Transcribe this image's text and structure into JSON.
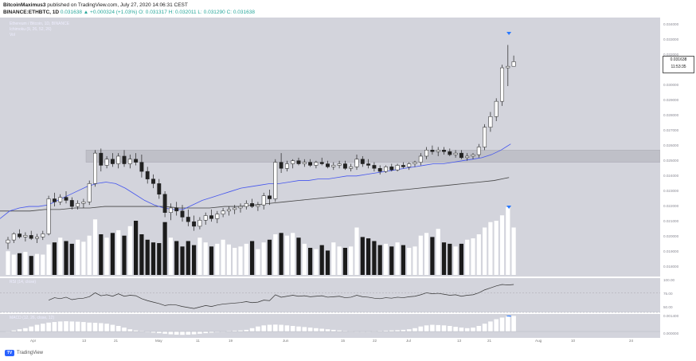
{
  "header": {
    "line1_author": "BitcoinMaximus3",
    "line1_rest": " published on TradingView.com, July 27, 2020 14:06:31 CEST",
    "line2_symbol": "BINANCE:ETHBTC, 1D",
    "line2_values": "0.031638 ▲ +0.000324 (+1.03%) O: 0.031317 H: 0.032011 L: 0.031290 C: 0.031638"
  },
  "legend": {
    "symbol": "Ethereum / Bitcoin, 1D, BINANCE",
    "ichimoku": "Ichimoku (9, 26, 52, 26)",
    "vol": "Vol",
    "rsi": "RSI (14, close)",
    "macd": "MACD (12, 26, close, 12)"
  },
  "price_axis": [
    "0.034000",
    "0.033000",
    "0.032000",
    "0.031000",
    "0.030000",
    "0.029000",
    "0.028000",
    "0.027000",
    "0.026000",
    "0.025000",
    "0.024000",
    "0.023000",
    "0.022000",
    "0.021000",
    "0.020000",
    "0.019000",
    "0.018000"
  ],
  "last_price": "0.031638",
  "countdown": "11:53:35",
  "rsi_axis": [
    "100.00",
    "75.00",
    "50.00"
  ],
  "macd_axis": [
    "0.001400",
    "0.000000"
  ],
  "x_axis": [
    "Apr",
    "13",
    "21",
    "May",
    "11",
    "19",
    "Jun",
    "15",
    "22",
    "Jul",
    "13",
    "21",
    "Aug",
    "10",
    "24"
  ],
  "footer": "TradingView",
  "colors": {
    "panel": "#d3d4dc",
    "zone": "#bfc0c8",
    "blue_line": "#4455ee",
    "black_line": "#444444",
    "marker": "#2979ff"
  },
  "chart_data": {
    "type": "candlestick",
    "title": "Ethereum / Bitcoin, 1D, BINANCE",
    "ylim": [
      0.0175,
      0.0345
    ],
    "resistance_zone": [
      0.025,
      0.0258
    ],
    "candles": [
      {
        "o": 0.0197,
        "h": 0.0201,
        "l": 0.0193,
        "c": 0.0199
      },
      {
        "o": 0.0199,
        "h": 0.0204,
        "l": 0.0197,
        "c": 0.0203
      },
      {
        "o": 0.0203,
        "h": 0.0206,
        "l": 0.02,
        "c": 0.0201
      },
      {
        "o": 0.0201,
        "h": 0.0204,
        "l": 0.0198,
        "c": 0.0202
      },
      {
        "o": 0.0202,
        "h": 0.0205,
        "l": 0.0199,
        "c": 0.02
      },
      {
        "o": 0.02,
        "h": 0.0203,
        "l": 0.0197,
        "c": 0.0201
      },
      {
        "o": 0.0201,
        "h": 0.0205,
        "l": 0.0199,
        "c": 0.0203
      },
      {
        "o": 0.0203,
        "h": 0.0228,
        "l": 0.0202,
        "c": 0.0226
      },
      {
        "o": 0.0226,
        "h": 0.023,
        "l": 0.0221,
        "c": 0.0224
      },
      {
        "o": 0.0224,
        "h": 0.0229,
        "l": 0.0222,
        "c": 0.0227
      },
      {
        "o": 0.0227,
        "h": 0.0231,
        "l": 0.0223,
        "c": 0.0225
      },
      {
        "o": 0.0225,
        "h": 0.0227,
        "l": 0.0219,
        "c": 0.0221
      },
      {
        "o": 0.0221,
        "h": 0.0225,
        "l": 0.0219,
        "c": 0.0223
      },
      {
        "o": 0.0223,
        "h": 0.0226,
        "l": 0.022,
        "c": 0.0224
      },
      {
        "o": 0.0224,
        "h": 0.0238,
        "l": 0.0222,
        "c": 0.0236
      },
      {
        "o": 0.0236,
        "h": 0.0258,
        "l": 0.0234,
        "c": 0.0256
      },
      {
        "o": 0.0256,
        "h": 0.0259,
        "l": 0.0244,
        "c": 0.0248
      },
      {
        "o": 0.0248,
        "h": 0.0254,
        "l": 0.0246,
        "c": 0.0252
      },
      {
        "o": 0.0252,
        "h": 0.0256,
        "l": 0.0247,
        "c": 0.0249
      },
      {
        "o": 0.0249,
        "h": 0.0256,
        "l": 0.0246,
        "c": 0.0254
      },
      {
        "o": 0.0254,
        "h": 0.0258,
        "l": 0.0247,
        "c": 0.0249
      },
      {
        "o": 0.0249,
        "h": 0.0255,
        "l": 0.0246,
        "c": 0.0252
      },
      {
        "o": 0.0252,
        "h": 0.0256,
        "l": 0.0248,
        "c": 0.025
      },
      {
        "o": 0.025,
        "h": 0.0255,
        "l": 0.024,
        "c": 0.0244
      },
      {
        "o": 0.0244,
        "h": 0.0247,
        "l": 0.0236,
        "c": 0.0239
      },
      {
        "o": 0.0239,
        "h": 0.0242,
        "l": 0.0233,
        "c": 0.0236
      },
      {
        "o": 0.0236,
        "h": 0.0239,
        "l": 0.0226,
        "c": 0.0229
      },
      {
        "o": 0.0229,
        "h": 0.0231,
        "l": 0.0214,
        "c": 0.0217
      },
      {
        "o": 0.0217,
        "h": 0.0223,
        "l": 0.0212,
        "c": 0.022
      },
      {
        "o": 0.022,
        "h": 0.0224,
        "l": 0.0215,
        "c": 0.0218
      },
      {
        "o": 0.0218,
        "h": 0.0222,
        "l": 0.0211,
        "c": 0.0214
      },
      {
        "o": 0.0214,
        "h": 0.0219,
        "l": 0.0208,
        "c": 0.0211
      },
      {
        "o": 0.0211,
        "h": 0.0215,
        "l": 0.0205,
        "c": 0.0208
      },
      {
        "o": 0.0208,
        "h": 0.0214,
        "l": 0.0206,
        "c": 0.0212
      },
      {
        "o": 0.0212,
        "h": 0.0217,
        "l": 0.0209,
        "c": 0.0215
      },
      {
        "o": 0.0215,
        "h": 0.0219,
        "l": 0.0211,
        "c": 0.0213
      },
      {
        "o": 0.0213,
        "h": 0.0218,
        "l": 0.021,
        "c": 0.0216
      },
      {
        "o": 0.0216,
        "h": 0.022,
        "l": 0.0214,
        "c": 0.0218
      },
      {
        "o": 0.0218,
        "h": 0.0221,
        "l": 0.0215,
        "c": 0.0219
      },
      {
        "o": 0.0219,
        "h": 0.0222,
        "l": 0.0216,
        "c": 0.022
      },
      {
        "o": 0.022,
        "h": 0.0223,
        "l": 0.0217,
        "c": 0.0221
      },
      {
        "o": 0.0221,
        "h": 0.0225,
        "l": 0.0219,
        "c": 0.0223
      },
      {
        "o": 0.0223,
        "h": 0.0226,
        "l": 0.022,
        "c": 0.0221
      },
      {
        "o": 0.0221,
        "h": 0.0224,
        "l": 0.0218,
        "c": 0.0222
      },
      {
        "o": 0.0222,
        "h": 0.023,
        "l": 0.0219,
        "c": 0.0228
      },
      {
        "o": 0.0228,
        "h": 0.0232,
        "l": 0.0222,
        "c": 0.0226
      },
      {
        "o": 0.0226,
        "h": 0.0252,
        "l": 0.0224,
        "c": 0.025
      },
      {
        "o": 0.025,
        "h": 0.0256,
        "l": 0.0243,
        "c": 0.0246
      },
      {
        "o": 0.0246,
        "h": 0.0251,
        "l": 0.0244,
        "c": 0.0249
      },
      {
        "o": 0.0249,
        "h": 0.0252,
        "l": 0.0246,
        "c": 0.0251
      },
      {
        "o": 0.0251,
        "h": 0.0253,
        "l": 0.0248,
        "c": 0.0249
      },
      {
        "o": 0.0249,
        "h": 0.0252,
        "l": 0.0247,
        "c": 0.025
      },
      {
        "o": 0.025,
        "h": 0.0252,
        "l": 0.0247,
        "c": 0.0248
      },
      {
        "o": 0.0248,
        "h": 0.0251,
        "l": 0.0246,
        "c": 0.025
      },
      {
        "o": 0.025,
        "h": 0.0253,
        "l": 0.0248,
        "c": 0.0249
      },
      {
        "o": 0.0249,
        "h": 0.0251,
        "l": 0.0246,
        "c": 0.0247
      },
      {
        "o": 0.0247,
        "h": 0.025,
        "l": 0.0245,
        "c": 0.0248
      },
      {
        "o": 0.0248,
        "h": 0.0251,
        "l": 0.0246,
        "c": 0.0249
      },
      {
        "o": 0.0249,
        "h": 0.0251,
        "l": 0.0245,
        "c": 0.0246
      },
      {
        "o": 0.0246,
        "h": 0.0249,
        "l": 0.0244,
        "c": 0.0247
      },
      {
        "o": 0.0247,
        "h": 0.0255,
        "l": 0.0245,
        "c": 0.0252
      },
      {
        "o": 0.0252,
        "h": 0.0254,
        "l": 0.0247,
        "c": 0.0249
      },
      {
        "o": 0.0249,
        "h": 0.0252,
        "l": 0.0246,
        "c": 0.0248
      },
      {
        "o": 0.0248,
        "h": 0.025,
        "l": 0.0244,
        "c": 0.0246
      },
      {
        "o": 0.0246,
        "h": 0.0248,
        "l": 0.0242,
        "c": 0.0244
      },
      {
        "o": 0.0244,
        "h": 0.0248,
        "l": 0.0243,
        "c": 0.0247
      },
      {
        "o": 0.0247,
        "h": 0.0249,
        "l": 0.0244,
        "c": 0.0245
      },
      {
        "o": 0.0245,
        "h": 0.0249,
        "l": 0.0244,
        "c": 0.0248
      },
      {
        "o": 0.0248,
        "h": 0.025,
        "l": 0.0246,
        "c": 0.0247
      },
      {
        "o": 0.0247,
        "h": 0.025,
        "l": 0.0245,
        "c": 0.0249
      },
      {
        "o": 0.0249,
        "h": 0.0251,
        "l": 0.0247,
        "c": 0.025
      },
      {
        "o": 0.025,
        "h": 0.0256,
        "l": 0.0248,
        "c": 0.0254
      },
      {
        "o": 0.0254,
        "h": 0.026,
        "l": 0.0252,
        "c": 0.0258
      },
      {
        "o": 0.0258,
        "h": 0.0261,
        "l": 0.0255,
        "c": 0.0257
      },
      {
        "o": 0.0257,
        "h": 0.026,
        "l": 0.0254,
        "c": 0.0258
      },
      {
        "o": 0.0258,
        "h": 0.026,
        "l": 0.0255,
        "c": 0.0257
      },
      {
        "o": 0.0257,
        "h": 0.0259,
        "l": 0.0254,
        "c": 0.0255
      },
      {
        "o": 0.0255,
        "h": 0.0258,
        "l": 0.0253,
        "c": 0.0256
      },
      {
        "o": 0.0256,
        "h": 0.0258,
        "l": 0.0252,
        "c": 0.0253
      },
      {
        "o": 0.0253,
        "h": 0.0256,
        "l": 0.0251,
        "c": 0.0254
      },
      {
        "o": 0.0254,
        "h": 0.0256,
        "l": 0.0252,
        "c": 0.0255
      },
      {
        "o": 0.0255,
        "h": 0.0262,
        "l": 0.0253,
        "c": 0.026
      },
      {
        "o": 0.026,
        "h": 0.0275,
        "l": 0.0258,
        "c": 0.0273
      },
      {
        "o": 0.0273,
        "h": 0.0283,
        "l": 0.027,
        "c": 0.028
      },
      {
        "o": 0.028,
        "h": 0.0292,
        "l": 0.0277,
        "c": 0.029
      },
      {
        "o": 0.029,
        "h": 0.0314,
        "l": 0.0287,
        "c": 0.0312
      },
      {
        "o": 0.0312,
        "h": 0.0327,
        "l": 0.03,
        "c": 0.0313
      },
      {
        "o": 0.0313,
        "h": 0.032,
        "l": 0.0313,
        "c": 0.0316
      }
    ],
    "tenkan_line": [
      0.0213,
      0.0218,
      0.022,
      0.0221,
      0.0221,
      0.0222,
      0.0225,
      0.0228,
      0.0231,
      0.0234,
      0.0236,
      0.0237,
      0.0236,
      0.0233,
      0.0229,
      0.0225,
      0.0222,
      0.022,
      0.0219,
      0.0219,
      0.0222,
      0.0225,
      0.0227,
      0.0229,
      0.0231,
      0.0233,
      0.0234,
      0.0235,
      0.0236,
      0.0236,
      0.0237,
      0.0238,
      0.0238,
      0.0239,
      0.0239,
      0.024,
      0.0241,
      0.0241,
      0.0242,
      0.0243,
      0.0244,
      0.0245,
      0.0246,
      0.0247,
      0.0248,
      0.0249,
      0.0249,
      0.025,
      0.0251,
      0.0252,
      0.0253,
      0.0255,
      0.0258,
      0.0262
    ],
    "kijun_line": [
      0.0218,
      0.0218,
      0.0218,
      0.0219,
      0.0219,
      0.022,
      0.022,
      0.0221,
      0.0221,
      0.0221,
      0.0221,
      0.0221,
      0.022,
      0.022,
      0.022,
      0.0221,
      0.0221,
      0.0222,
      0.0223,
      0.0224,
      0.0225,
      0.0226,
      0.0227,
      0.0228,
      0.0229,
      0.023,
      0.0231,
      0.0232,
      0.0233,
      0.0234,
      0.0235,
      0.0236,
      0.0237,
      0.0238,
      0.024
    ],
    "volume": [
      0.35,
      0.3,
      0.32,
      0.34,
      0.28,
      0.31,
      0.3,
      0.45,
      0.48,
      0.55,
      0.5,
      0.46,
      0.52,
      0.49,
      0.58,
      0.82,
      0.6,
      0.55,
      0.62,
      0.66,
      0.58,
      0.72,
      0.8,
      0.6,
      0.52,
      0.48,
      0.47,
      0.78,
      0.55,
      0.5,
      0.42,
      0.5,
      0.44,
      0.55,
      0.48,
      0.42,
      0.46,
      0.52,
      0.45,
      0.4,
      0.42,
      0.46,
      0.5,
      0.38,
      0.48,
      0.52,
      0.6,
      0.62,
      0.58,
      0.62,
      0.55,
      0.46,
      0.4,
      0.38,
      0.44,
      0.36,
      0.48,
      0.42,
      0.4,
      0.42,
      0.7,
      0.56,
      0.54,
      0.5,
      0.44,
      0.46,
      0.42,
      0.48,
      0.44,
      0.4,
      0.42,
      0.58,
      0.62,
      0.56,
      0.68,
      0.48,
      0.46,
      0.42,
      0.46,
      0.52,
      0.54,
      0.6,
      0.7,
      0.78,
      0.8,
      0.88,
      1.0,
      0.7
    ],
    "rsi": [
      null,
      null,
      null,
      null,
      null,
      null,
      null,
      55,
      60,
      58,
      61,
      56,
      58,
      59,
      62,
      70,
      64,
      66,
      63,
      68,
      63,
      65,
      64,
      58,
      54,
      51,
      48,
      44,
      46,
      45,
      42,
      40,
      38,
      41,
      44,
      42,
      45,
      47,
      48,
      49,
      50,
      52,
      50,
      51,
      55,
      54,
      66,
      61,
      63,
      65,
      63,
      64,
      62,
      63,
      64,
      61,
      62,
      63,
      60,
      61,
      65,
      62,
      61,
      59,
      58,
      60,
      59,
      61,
      60,
      62,
      63,
      66,
      70,
      68,
      69,
      67,
      65,
      66,
      63,
      65,
      66,
      70,
      76,
      80,
      84,
      87,
      86,
      87
    ],
    "macd_hist": [
      0.0,
      0.1,
      0.2,
      0.3,
      0.45,
      0.6,
      0.7,
      0.8,
      0.85,
      0.9,
      0.92,
      0.9,
      0.88,
      0.85,
      0.8,
      0.78,
      0.75,
      0.7,
      0.6,
      0.5,
      0.35,
      0.2,
      0.1,
      0.05,
      -0.05,
      -0.1,
      -0.15,
      -0.2,
      -0.25,
      -0.28,
      -0.3,
      -0.28,
      -0.25,
      -0.2,
      -0.15,
      -0.1,
      -0.05,
      0.0,
      0.05,
      0.08,
      0.1,
      0.15,
      0.3,
      0.45,
      0.55,
      0.6,
      0.62,
      0.6,
      0.55,
      0.5,
      0.45,
      0.4,
      0.35,
      0.3,
      0.25,
      0.2,
      0.15,
      0.1,
      0.05,
      0.02,
      0.0,
      -0.02,
      0.0,
      0.02,
      0.05,
      0.08,
      0.1,
      0.12,
      0.15,
      0.2,
      0.3,
      0.45,
      0.55,
      0.6,
      0.58,
      0.55,
      0.5,
      0.42,
      0.35,
      0.3,
      0.35,
      0.5,
      0.7,
      0.9,
      1.1,
      1.25,
      1.35,
      1.4
    ]
  }
}
